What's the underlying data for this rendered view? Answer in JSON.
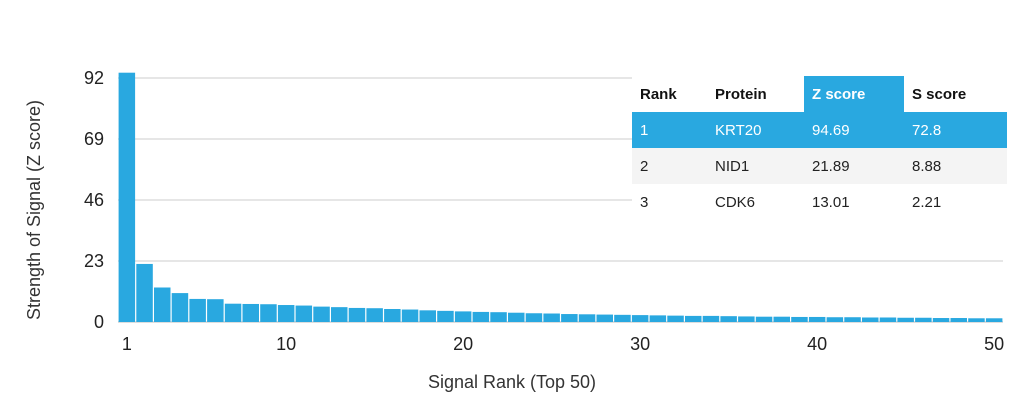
{
  "chart_data": {
    "type": "bar",
    "xlabel": "Signal Rank (Top 50)",
    "ylabel": "Strength of Signal (Z score)",
    "ylim": [
      0,
      92
    ],
    "yticks": [
      0,
      23,
      46,
      69,
      92
    ],
    "xticks": [
      1,
      10,
      20,
      30,
      40,
      50
    ],
    "grid": true,
    "bar_color": "#29a8e0",
    "x": [
      1,
      2,
      3,
      4,
      5,
      6,
      7,
      8,
      9,
      10,
      11,
      12,
      13,
      14,
      15,
      16,
      17,
      18,
      19,
      20,
      21,
      22,
      23,
      24,
      25,
      26,
      27,
      28,
      29,
      30,
      31,
      32,
      33,
      34,
      35,
      36,
      37,
      38,
      39,
      40,
      41,
      42,
      43,
      44,
      45,
      46,
      47,
      48,
      49,
      50
    ],
    "values": [
      94.69,
      21.89,
      13.01,
      10.9,
      8.7,
      8.6,
      6.9,
      6.8,
      6.7,
      6.4,
      6.2,
      5.8,
      5.6,
      5.3,
      5.2,
      4.9,
      4.7,
      4.4,
      4.2,
      4.0,
      3.8,
      3.7,
      3.5,
      3.3,
      3.2,
      3.0,
      2.9,
      2.8,
      2.7,
      2.6,
      2.5,
      2.4,
      2.3,
      2.3,
      2.2,
      2.1,
      2.0,
      2.0,
      1.9,
      1.9,
      1.8,
      1.8,
      1.7,
      1.7,
      1.6,
      1.6,
      1.5,
      1.5,
      1.4,
      1.4
    ]
  },
  "table": {
    "headers": [
      "Rank",
      "Protein",
      "Z score",
      "S score"
    ],
    "highlight_color": "#29a8e0",
    "rows": [
      {
        "rank": "1",
        "protein": "KRT20",
        "z": "94.69",
        "s": "72.8"
      },
      {
        "rank": "2",
        "protein": "NID1",
        "z": "21.89",
        "s": "8.88"
      },
      {
        "rank": "3",
        "protein": "CDK6",
        "z": "13.01",
        "s": "2.21"
      }
    ]
  }
}
